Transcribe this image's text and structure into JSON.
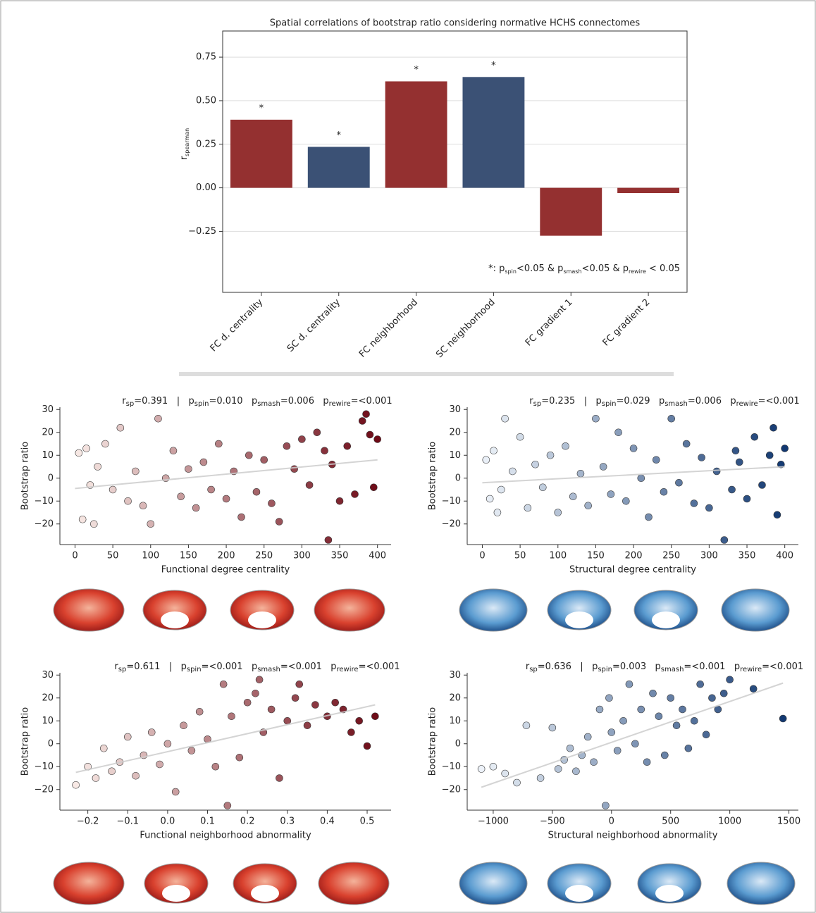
{
  "chart_data": [
    {
      "type": "bar",
      "title": "Spatial correlations of bootstrap ratio considering normative HCHS connectomes",
      "ylabel": [
        {
          "text": "r"
        },
        {
          "sub": "spearman"
        }
      ],
      "categories": [
        "FC d. centrality",
        "SC d. centrality",
        "FC neighborhood",
        "SC neighborhood",
        "FC gradient 1",
        "FC gradient 2"
      ],
      "values": [
        0.391,
        0.235,
        0.611,
        0.636,
        -0.275,
        -0.03
      ],
      "colors": [
        "#943030",
        "#3b5175",
        "#943030",
        "#3b5175",
        "#943030",
        "#943030"
      ],
      "annotations": [
        "*",
        "*",
        "*",
        "*",
        null,
        null
      ],
      "footnote": [
        {
          "text": "*: p"
        },
        {
          "sub": "spin"
        },
        {
          "text": "<0.05 & p"
        },
        {
          "sub": "smash"
        },
        {
          "text": "<0.05 & p"
        },
        {
          "sub": "rewire"
        },
        {
          "text": " < 0.05"
        }
      ],
      "ylim": [
        -0.6,
        0.9
      ],
      "yticks": [
        {
          "value": -0.25,
          "label": "−0.25"
        },
        {
          "value": 0,
          "label": "0.00"
        },
        {
          "value": 0.25,
          "label": "0.25"
        },
        {
          "value": 0.5,
          "label": "0.50"
        },
        {
          "value": 0.75,
          "label": "0.75"
        }
      ],
      "grid": true
    },
    {
      "type": "scatter",
      "title": [
        {
          "text": "r"
        },
        {
          "sub": "sp"
        },
        {
          "text": "=0.391   |   p"
        },
        {
          "sub": "spin"
        },
        {
          "text": "=0.010   p"
        },
        {
          "sub": "smash"
        },
        {
          "text": "=0.006   p"
        },
        {
          "sub": "rewire"
        },
        {
          "text": "=<0.001"
        }
      ],
      "xlabel": "Functional degree centrality",
      "ylabel": "Bootstrap ratio",
      "x": [
        5,
        10,
        15,
        20,
        25,
        30,
        40,
        50,
        60,
        70,
        80,
        90,
        100,
        110,
        120,
        130,
        140,
        150,
        160,
        170,
        180,
        190,
        200,
        210,
        220,
        230,
        240,
        250,
        260,
        270,
        280,
        290,
        300,
        310,
        320,
        330,
        335,
        340,
        350,
        360,
        370,
        380,
        385,
        390,
        395,
        400
      ],
      "y": [
        11,
        -18,
        13,
        -3,
        -20,
        5,
        15,
        -5,
        22,
        -10,
        3,
        -12,
        -20,
        26,
        0,
        12,
        -8,
        4,
        -13,
        7,
        -5,
        15,
        -9,
        3,
        -17,
        10,
        -6,
        8,
        -11,
        -19,
        14,
        4,
        17,
        -3,
        20,
        12,
        -27,
        6,
        -10,
        14,
        -7,
        25,
        28,
        19,
        -4,
        17
      ],
      "cmap": [
        "#fff5f0",
        "#67000d"
      ],
      "fit": {
        "x": [
          0,
          400
        ],
        "y": [
          -4.5,
          8
        ],
        "color": "#cccccc"
      },
      "xlim": [
        -20,
        418
      ],
      "ylim": [
        -29,
        31
      ],
      "xticks": [
        0,
        50,
        100,
        150,
        200,
        250,
        300,
        350,
        400
      ],
      "yticks": [
        {
          "value": -20,
          "label": "−20"
        },
        {
          "value": -10,
          "label": "−10"
        },
        0,
        10,
        20,
        30
      ]
    },
    {
      "type": "scatter",
      "title": [
        {
          "text": "r"
        },
        {
          "sub": "sp"
        },
        {
          "text": "=0.235   |   p"
        },
        {
          "sub": "spin"
        },
        {
          "text": "=0.029   p"
        },
        {
          "sub": "smash"
        },
        {
          "text": "=0.006   p"
        },
        {
          "sub": "rewire"
        },
        {
          "text": "=<0.001"
        }
      ],
      "xlabel": "Structural degree centrality",
      "ylabel": "Bootstrap ratio",
      "x": [
        5,
        10,
        15,
        20,
        25,
        30,
        40,
        50,
        60,
        70,
        80,
        90,
        100,
        110,
        120,
        130,
        140,
        150,
        160,
        170,
        180,
        190,
        200,
        210,
        220,
        230,
        240,
        250,
        260,
        270,
        280,
        290,
        300,
        310,
        320,
        330,
        335,
        340,
        350,
        360,
        370,
        380,
        385,
        390,
        395,
        400
      ],
      "y": [
        8,
        -9,
        12,
        -15,
        -5,
        26,
        3,
        18,
        -13,
        6,
        -4,
        10,
        -15,
        14,
        -8,
        2,
        -12,
        26,
        5,
        -7,
        20,
        -10,
        13,
        0,
        -17,
        8,
        -6,
        26,
        -2,
        15,
        -11,
        9,
        -13,
        3,
        -27,
        -5,
        12,
        7,
        -9,
        18,
        -3,
        10,
        22,
        -16,
        6,
        13
      ],
      "cmap": [
        "#f7fbff",
        "#08306b"
      ],
      "fit": {
        "x": [
          0,
          400
        ],
        "y": [
          -2,
          5
        ],
        "color": "#cccccc"
      },
      "xlim": [
        -20,
        418
      ],
      "ylim": [
        -29,
        31
      ],
      "xticks": [
        0,
        50,
        100,
        150,
        200,
        250,
        300,
        350,
        400
      ],
      "yticks": [
        {
          "value": -20,
          "label": "−20"
        },
        {
          "value": -10,
          "label": "−10"
        },
        0,
        10,
        20,
        30
      ]
    },
    {
      "type": "scatter",
      "title": [
        {
          "text": "r"
        },
        {
          "sub": "sp"
        },
        {
          "text": "=0.611   |   p"
        },
        {
          "sub": "spin"
        },
        {
          "text": "=<0.001   p"
        },
        {
          "sub": "smash"
        },
        {
          "text": "=<0.001   p"
        },
        {
          "sub": "rewire"
        },
        {
          "text": "=<0.001"
        }
      ],
      "xlabel": "Functional neighborhood abnormality",
      "ylabel": "Bootstrap ratio",
      "x": [
        -0.23,
        -0.2,
        -0.18,
        -0.16,
        -0.14,
        -0.12,
        -0.1,
        -0.08,
        -0.06,
        -0.04,
        -0.02,
        0,
        0.02,
        0.04,
        0.06,
        0.08,
        0.1,
        0.12,
        0.14,
        0.15,
        0.16,
        0.18,
        0.2,
        0.22,
        0.23,
        0.24,
        0.26,
        0.28,
        0.3,
        0.32,
        0.33,
        0.35,
        0.37,
        0.4,
        0.42,
        0.44,
        0.46,
        0.48,
        0.5,
        0.52
      ],
      "y": [
        -18,
        -10,
        -15,
        -2,
        -12,
        -8,
        3,
        -14,
        -5,
        5,
        -9,
        0,
        -21,
        8,
        -3,
        14,
        2,
        -10,
        26,
        -27,
        12,
        -6,
        18,
        22,
        28,
        5,
        15,
        -15,
        10,
        20,
        26,
        8,
        17,
        12,
        18,
        15,
        5,
        10,
        -1,
        12
      ],
      "cmap": [
        "#fff5f0",
        "#67000d"
      ],
      "fit": {
        "x": [
          -0.23,
          0.52
        ],
        "y": [
          -12.5,
          17
        ],
        "color": "#cccccc"
      },
      "xlim": [
        -0.27,
        0.56
      ],
      "ylim": [
        -29,
        31
      ],
      "xticks": [
        {
          "value": -0.2,
          "label": "−0.2"
        },
        {
          "value": -0.1,
          "label": "−0.1"
        },
        {
          "value": 0,
          "label": "0.0"
        },
        0.1,
        0.2,
        0.3,
        0.4,
        0.5
      ],
      "yticks": [
        {
          "value": -20,
          "label": "−20"
        },
        {
          "value": -10,
          "label": "−10"
        },
        0,
        10,
        20,
        30
      ]
    },
    {
      "type": "scatter",
      "title": [
        {
          "text": "r"
        },
        {
          "sub": "sp"
        },
        {
          "text": "=0.636   |   p"
        },
        {
          "sub": "spin"
        },
        {
          "text": "=0.003   p"
        },
        {
          "sub": "smash"
        },
        {
          "text": "=<0.001   p"
        },
        {
          "sub": "rewire"
        },
        {
          "text": "=<0.001"
        }
      ],
      "xlabel": "Structural neighborhood abnormality",
      "ylabel": "Bootstrap ratio",
      "x": [
        -1100,
        -1000,
        -900,
        -800,
        -720,
        -600,
        -500,
        -450,
        -400,
        -350,
        -300,
        -250,
        -200,
        -150,
        -100,
        -50,
        -20,
        0,
        50,
        100,
        150,
        200,
        250,
        300,
        350,
        400,
        450,
        500,
        550,
        600,
        650,
        700,
        750,
        800,
        850,
        900,
        950,
        1000,
        1200,
        1450
      ],
      "y": [
        -11,
        -10,
        -13,
        -17,
        8,
        -15,
        7,
        -11,
        -7,
        -2,
        -12,
        -5,
        3,
        -8,
        15,
        -27,
        20,
        5,
        -3,
        10,
        26,
        0,
        15,
        -8,
        22,
        12,
        -5,
        20,
        8,
        15,
        -2,
        10,
        26,
        4,
        20,
        15,
        22,
        28,
        24,
        11
      ],
      "cmap": [
        "#f7fbff",
        "#08306b"
      ],
      "fit": {
        "x": [
          -1100,
          1450
        ],
        "y": [
          -19,
          26.5
        ],
        "color": "#cccccc"
      },
      "xlim": [
        -1220,
        1580
      ],
      "ylim": [
        -29,
        31
      ],
      "xticks": [
        {
          "value": -1000,
          "label": "−1000"
        },
        {
          "value": -500,
          "label": "−500"
        },
        0,
        500,
        1000,
        1500
      ],
      "yticks": [
        {
          "value": -20,
          "label": "−20"
        },
        {
          "value": -10,
          "label": "−10"
        },
        0,
        10,
        20,
        30
      ]
    }
  ]
}
